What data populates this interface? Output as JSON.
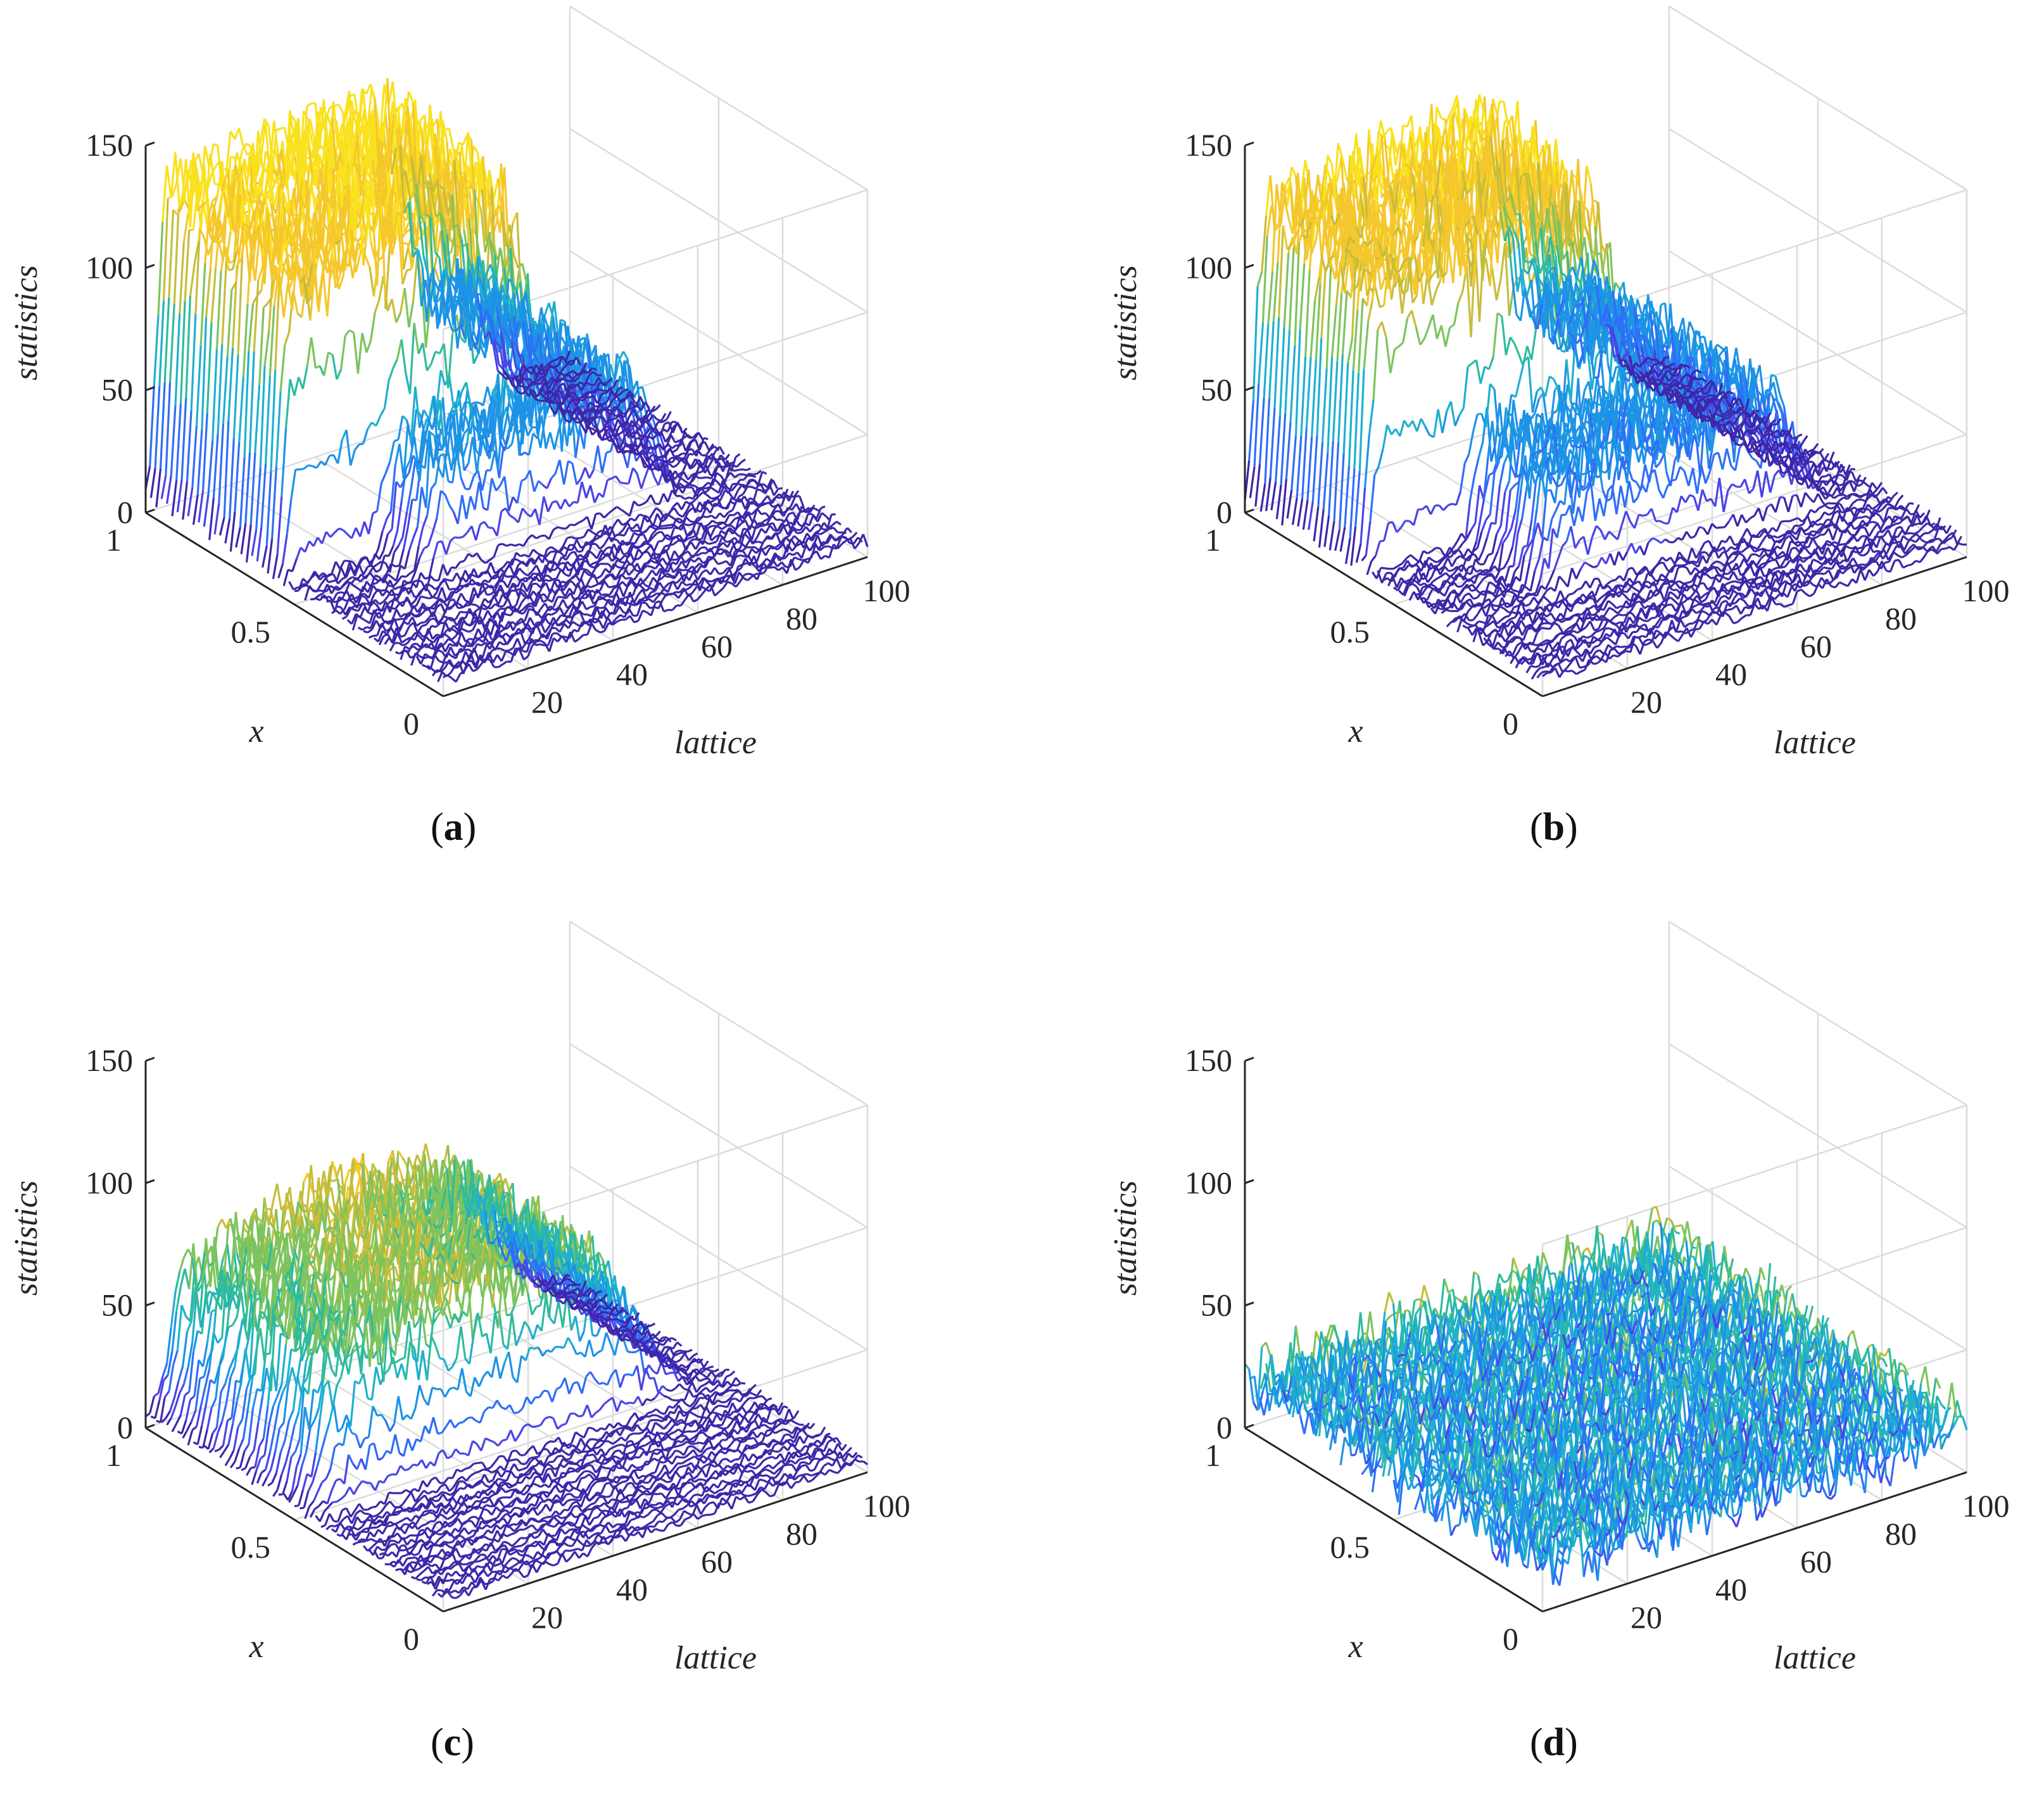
{
  "figure": {
    "title": ""
  },
  "chart_data": [
    {
      "type": "surface",
      "panel_label": "a",
      "xlabel": "x",
      "ylabel": "lattice",
      "zlabel": "statistics",
      "x_ticks": [
        "0",
        "0.5",
        "1"
      ],
      "y_ticks": [
        "20",
        "40",
        "60",
        "80",
        "100"
      ],
      "z_ticks": [
        "0",
        "50",
        "100",
        "150"
      ],
      "xlim": [
        0,
        1
      ],
      "ylim": [
        0,
        100
      ],
      "zlim": [
        0,
        150
      ],
      "colormap": "parula",
      "colors": [
        "#3e26a8",
        "#4a44e6",
        "#2f6ef7",
        "#1d93e6",
        "#1fafcf",
        "#2ebb9d",
        "#7dc35e",
        "#c6bd3a",
        "#f4c72c",
        "#f9e11e"
      ],
      "profile": {
        "x_breakpoints": [
          0,
          0.38,
          0.5,
          0.6,
          0.92,
          1
        ],
        "high_region": {
          "x_range": [
            0.55,
            1
          ],
          "lattice_range": [
            0,
            60
          ],
          "mean": 110,
          "max": 140
        },
        "mid_region": {
          "x_range": [
            0.38,
            0.55
          ],
          "lattice_range": [
            20,
            85
          ],
          "mean": 45
        },
        "low_region": {
          "x_range": [
            0,
            0.38
          ],
          "mean": 5
        }
      },
      "grid": true
    },
    {
      "type": "surface",
      "panel_label": "b",
      "xlabel": "x",
      "ylabel": "lattice",
      "zlabel": "statistics",
      "x_ticks": [
        "0",
        "0.5",
        "1"
      ],
      "y_ticks": [
        "20",
        "40",
        "60",
        "80",
        "100"
      ],
      "z_ticks": [
        "0",
        "50",
        "100",
        "150"
      ],
      "xlim": [
        0,
        1
      ],
      "ylim": [
        0,
        100
      ],
      "zlim": [
        0,
        150
      ],
      "colormap": "parula",
      "colors": [
        "#3e26a8",
        "#4a44e6",
        "#2f6ef7",
        "#1d93e6",
        "#1fafcf",
        "#2ebb9d",
        "#7dc35e",
        "#c6bd3a",
        "#f4c72c",
        "#f9e11e"
      ],
      "profile": {
        "high_region": {
          "x_range": [
            0.6,
            1
          ],
          "lattice_range": [
            0,
            60
          ],
          "mean": 105,
          "max": 140
        },
        "mid_region": {
          "x_range": [
            0.3,
            0.6
          ],
          "lattice_range": [
            20,
            90
          ],
          "mean": 40
        },
        "low_region": {
          "x_range": [
            0,
            0.3
          ],
          "mean": 5
        }
      },
      "grid": true
    },
    {
      "type": "surface",
      "panel_label": "c",
      "xlabel": "x",
      "ylabel": "lattice",
      "zlabel": "statistics",
      "x_ticks": [
        "0",
        "0.5",
        "1"
      ],
      "y_ticks": [
        "20",
        "40",
        "60",
        "80",
        "100"
      ],
      "z_ticks": [
        "0",
        "50",
        "100",
        "150"
      ],
      "xlim": [
        0,
        1
      ],
      "ylim": [
        0,
        100
      ],
      "zlim": [
        0,
        150
      ],
      "colormap": "parula",
      "colors": [
        "#3e26a8",
        "#4a44e6",
        "#2f6ef7",
        "#1d93e6",
        "#1fafcf",
        "#2ebb9d",
        "#7dc35e",
        "#c6bd3a",
        "#f4c72c",
        "#f9e11e"
      ],
      "profile": {
        "high_region": {
          "x_range": [
            0.45,
            1
          ],
          "lattice_range": [
            5,
            85
          ],
          "mean": 65,
          "max": 95
        },
        "low_region": {
          "x_range": [
            0,
            0.45
          ],
          "mean": 5
        }
      },
      "grid": true
    },
    {
      "type": "surface",
      "panel_label": "d",
      "xlabel": "x",
      "ylabel": "lattice",
      "zlabel": "statistics",
      "x_ticks": [
        "0",
        "0.5",
        "1"
      ],
      "y_ticks": [
        "20",
        "40",
        "60",
        "80",
        "100"
      ],
      "z_ticks": [
        "0",
        "50",
        "100",
        "150"
      ],
      "xlim": [
        0,
        1
      ],
      "ylim": [
        0,
        100
      ],
      "zlim": [
        0,
        150
      ],
      "colormap": "parula",
      "colors": [
        "#3e26a8",
        "#4a44e6",
        "#2f6ef7",
        "#1d93e6",
        "#1fafcf",
        "#2ebb9d",
        "#7dc35e",
        "#c6bd3a",
        "#f4c72c",
        "#f9e11e"
      ],
      "profile": {
        "uniform_region": {
          "x_range": [
            0,
            1
          ],
          "lattice_range": [
            0,
            100
          ],
          "mean": 20,
          "max": 45
        }
      },
      "grid": true
    }
  ],
  "captions": [
    {
      "open": "(",
      "label": "a",
      "close": ")"
    },
    {
      "open": "(",
      "label": "b",
      "close": ")"
    },
    {
      "open": "(",
      "label": "c",
      "close": ")"
    },
    {
      "open": "(",
      "label": "d",
      "close": ")"
    }
  ]
}
